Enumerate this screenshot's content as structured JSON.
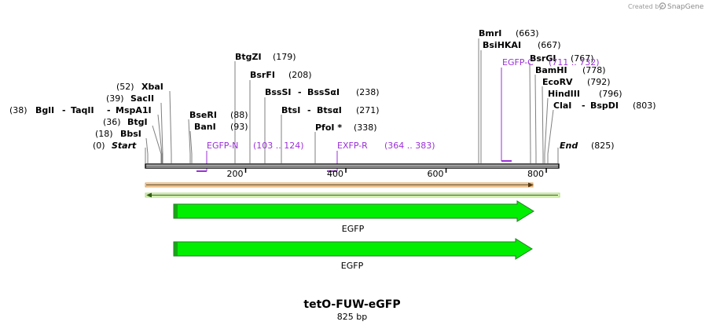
{
  "map": {
    "name": "tetO-FUW-eGFP",
    "length_label": "825 bp",
    "length_bp": 825
  },
  "credit": {
    "prefix": "Created by",
    "brand": "SnapGene"
  },
  "colors": {
    "feature_fill": "#00ee00",
    "feature_stroke": "#2a7a2a",
    "primer": "#9b30d9",
    "orange_bar": "#d9a05a",
    "green_bar": "#c8f0a0"
  },
  "ticks": [
    {
      "bp": 200,
      "label": "200"
    },
    {
      "bp": 400,
      "label": "400"
    },
    {
      "bp": 600,
      "label": "600"
    },
    {
      "bp": 800,
      "label": "800"
    }
  ],
  "sites": [
    {
      "key": "start",
      "name": "Start",
      "pos": "(0)",
      "bp": 0
    },
    {
      "key": "bbsi",
      "name": "BbsI",
      "pos": "(18)",
      "bp": 18
    },
    {
      "key": "btgi",
      "name": "BtgI",
      "pos": "(36)",
      "bp": 36
    },
    {
      "key": "bgli",
      "name": "BglI",
      "name2": "TaqII",
      "name3": "MspA1I",
      "pos": "(38)",
      "bp": 38
    },
    {
      "key": "sacii",
      "name": "SacII",
      "pos": "(39)",
      "bp": 39
    },
    {
      "key": "xbai",
      "name": "XbaI",
      "pos": "(52)",
      "bp": 52
    },
    {
      "key": "bani",
      "name": "BanI",
      "pos": "(93)",
      "bp": 93
    },
    {
      "key": "bseri",
      "name": "BseRI",
      "pos": "(88)",
      "bp": 88
    },
    {
      "key": "btgzi",
      "name": "BtgZI",
      "pos": "(179)",
      "bp": 179
    },
    {
      "key": "bsrfi",
      "name": "BsrFI",
      "pos": "(208)",
      "bp": 208
    },
    {
      "key": "bsssi",
      "name": "BssSI",
      "name2": "BssSαI",
      "pos": "(238)",
      "bp": 238
    },
    {
      "key": "btsi",
      "name": "BtsI",
      "name2": "BtsαI",
      "pos": "(271)",
      "bp": 271
    },
    {
      "key": "pfoi",
      "name": "PfoI *",
      "pos": "(338)",
      "bp": 338
    },
    {
      "key": "bmri",
      "name": "BmrI",
      "pos": "(663)",
      "bp": 663
    },
    {
      "key": "bsihkai",
      "name": "BsiHKAI",
      "pos": "(667)",
      "bp": 667
    },
    {
      "key": "bsrgi",
      "name": "BsrGI",
      "pos": "(767)",
      "bp": 767
    },
    {
      "key": "bamhi",
      "name": "BamHI",
      "pos": "(778)",
      "bp": 778
    },
    {
      "key": "ecorv",
      "name": "EcoRV",
      "pos": "(792)",
      "bp": 792
    },
    {
      "key": "hindiii",
      "name": "HindIII",
      "pos": "(796)",
      "bp": 796
    },
    {
      "key": "clai",
      "name": "ClaI",
      "name2": "BspDI",
      "pos": "(803)",
      "bp": 803
    },
    {
      "key": "end",
      "name": "End",
      "pos": "(825)",
      "bp": 825
    }
  ],
  "primers": [
    {
      "key": "egfpn",
      "name": "EGFP-N",
      "range": "(103 .. 124)",
      "start": 103,
      "end": 124
    },
    {
      "key": "exfpr",
      "name": "EXFP-R",
      "range": "(364 .. 383)",
      "start": 364,
      "end": 383
    },
    {
      "key": "egfpc",
      "name": "EGFP-C",
      "range": "(711 .. 732)",
      "start": 711,
      "end": 732
    }
  ],
  "features": [
    {
      "key": "egfp1",
      "name": "EGFP",
      "start": 58,
      "end": 777
    },
    {
      "key": "egfp2",
      "name": "EGFP",
      "start": 58,
      "end": 775
    }
  ]
}
